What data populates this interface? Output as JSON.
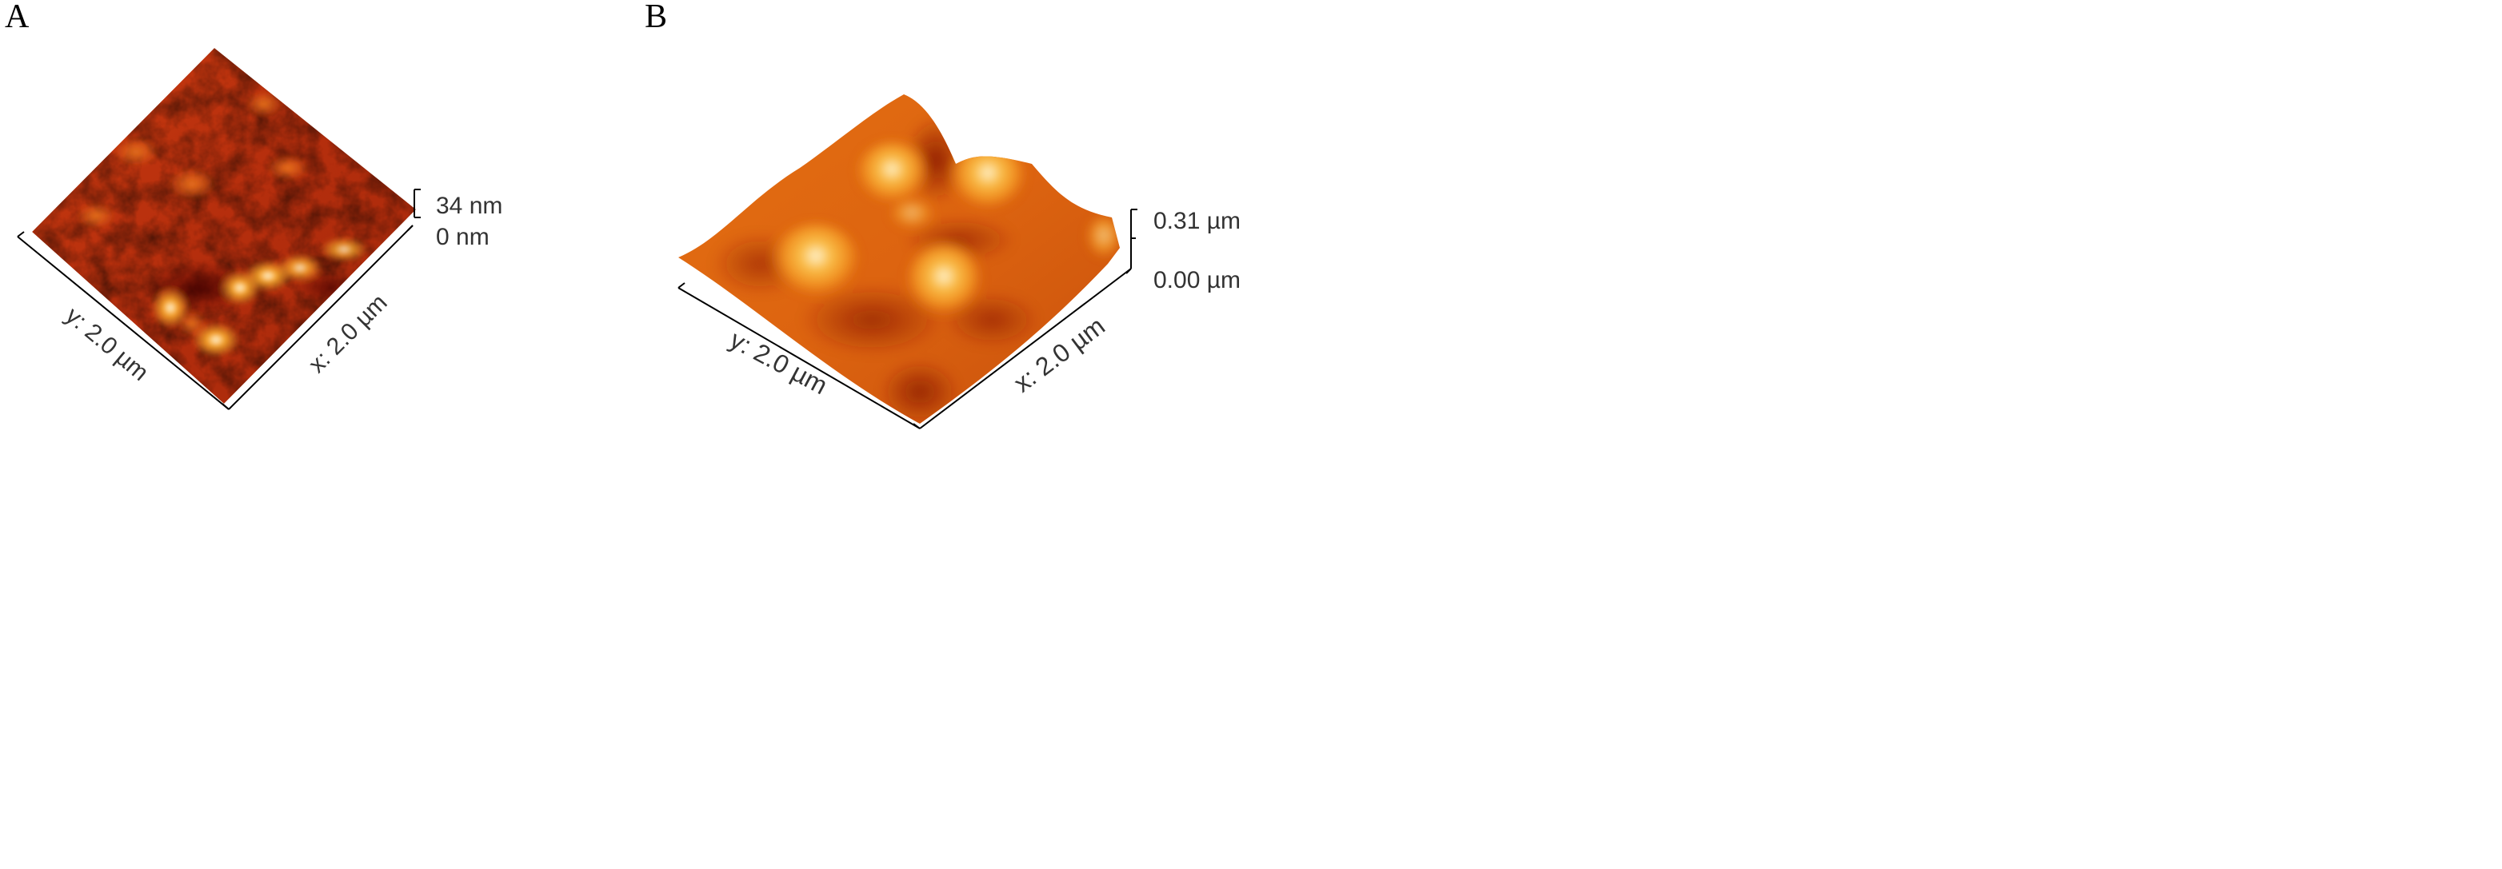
{
  "panels": [
    {
      "id": "A",
      "letter": "A",
      "x_axis_label": "x: 2.0 µm",
      "y_axis_label": "y: 2.0 µm",
      "z_max_label": "34 nm",
      "z_min_label": "0 nm"
    },
    {
      "id": "B",
      "letter": "B",
      "x_axis_label": "x: 2.0 µm",
      "y_axis_label": "y: 2.0 µm",
      "z_max_label": "0.31 µm",
      "z_min_label": "0.00 µm"
    }
  ],
  "colors": {
    "background": "#ffffff",
    "surface_dark": "#5a0c08",
    "surface_mid": "#c4350f",
    "surface_bright": "#f08a1c",
    "surface_peak": "#fff4d2"
  }
}
